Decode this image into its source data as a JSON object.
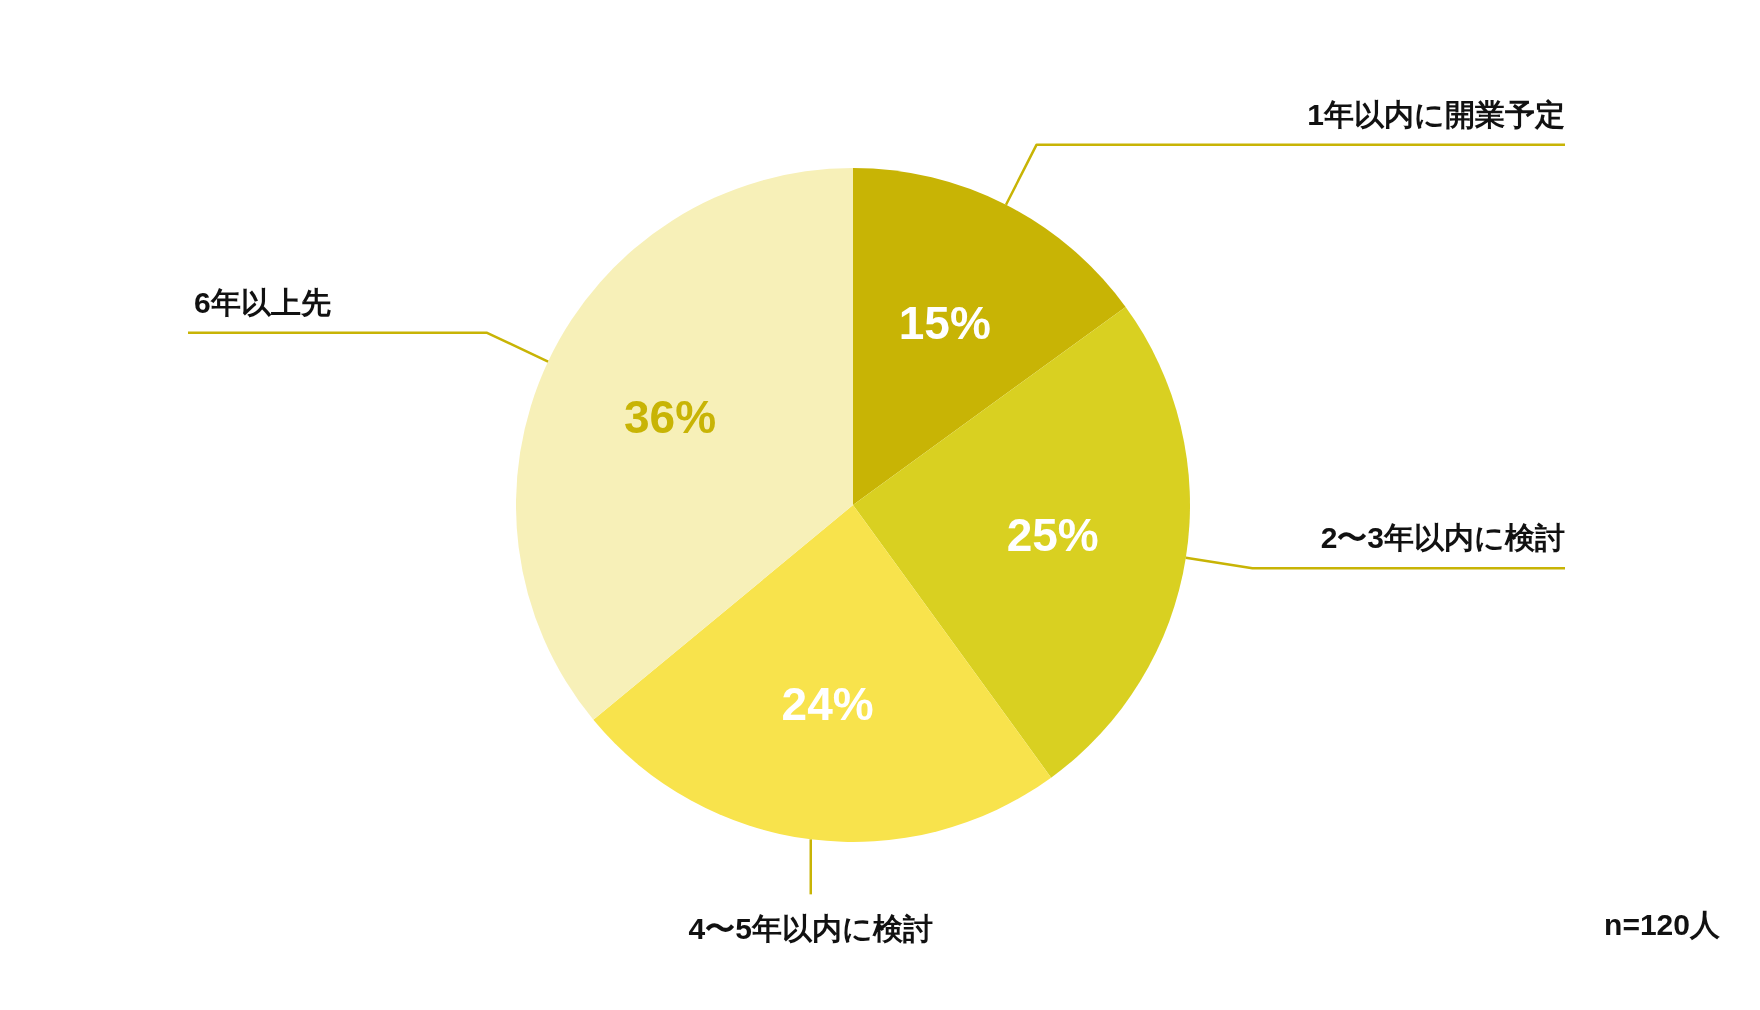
{
  "chart_data": {
    "type": "pie",
    "categories": [
      "1年以内に開業予定",
      "2〜3年以内に検討",
      "4〜5年以内に検討",
      "6年以上先"
    ],
    "values": [
      15,
      25,
      24,
      36
    ],
    "colors": [
      "#c8b405",
      "#d9d021",
      "#f8e34c",
      "#f7f0b8"
    ],
    "value_labels": [
      "15%",
      "25%",
      "24%",
      "36%"
    ],
    "annotations": [
      "n=120人"
    ]
  }
}
